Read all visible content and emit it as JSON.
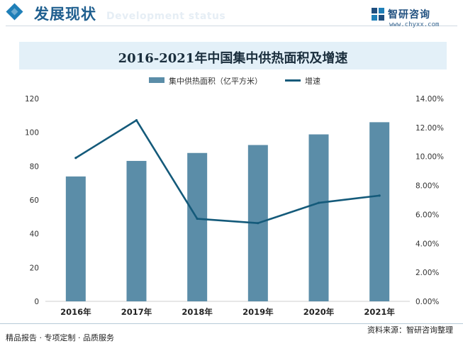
{
  "header": {
    "section_title": "发展现状",
    "section_watermark": "Development status",
    "brand_name": "智研咨询",
    "brand_url": "www.chyxx.com"
  },
  "chart_title": "2016-2021年中国集中供热面积及增速",
  "footer": {
    "left_text": "精品报告 · 专项定制 · 品质服务",
    "source_text": "资料来源：智研咨询整理"
  },
  "colors": {
    "bar": "#5b8da8",
    "line": "#145a7a",
    "accent": "#1f7fb8",
    "title_band": "#e3f0f8"
  },
  "chart_data": {
    "type": "bar",
    "categories": [
      "2016年",
      "2017年",
      "2018年",
      "2019年",
      "2020年",
      "2021年"
    ],
    "series": [
      {
        "name": "集中供热面积（亿平方米）",
        "type": "bar",
        "axis": "left",
        "values": [
          73.9,
          83.1,
          87.8,
          92.5,
          98.8,
          106.0
        ]
      },
      {
        "name": "增速",
        "type": "line",
        "axis": "right",
        "values": [
          9.9,
          12.5,
          5.7,
          5.4,
          6.8,
          7.3
        ]
      }
    ],
    "y_left": {
      "min": 0,
      "max": 120,
      "ticks": [
        0,
        20,
        40,
        60,
        80,
        100,
        120
      ]
    },
    "y_right": {
      "min": 0,
      "max": 14,
      "ticks": [
        "0.00%",
        "2.00%",
        "4.00%",
        "6.00%",
        "8.00%",
        "10.00%",
        "12.00%",
        "14.00%"
      ]
    },
    "legend_position": "top",
    "grid": false
  }
}
